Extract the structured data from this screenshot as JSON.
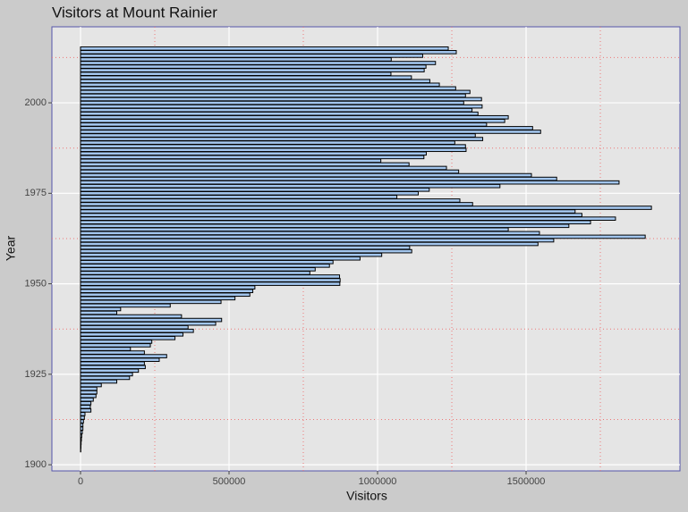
{
  "chart_data": {
    "type": "bar",
    "orientation": "horizontal",
    "title": "Visitors at Mount Rainier",
    "xlabel": "Visitors",
    "ylabel": "Year",
    "categories": [
      2015,
      2014,
      2013,
      2012,
      2011,
      2010,
      2009,
      2008,
      2007,
      2006,
      2005,
      2004,
      2003,
      2002,
      2001,
      2000,
      1999,
      1998,
      1997,
      1996,
      1995,
      1994,
      1993,
      1992,
      1991,
      1990,
      1989,
      1988,
      1987,
      1986,
      1985,
      1984,
      1983,
      1982,
      1981,
      1980,
      1979,
      1978,
      1977,
      1976,
      1975,
      1974,
      1973,
      1972,
      1971,
      1970,
      1969,
      1968,
      1967,
      1966,
      1965,
      1964,
      1963,
      1962,
      1961,
      1960,
      1959,
      1958,
      1957,
      1956,
      1955,
      1954,
      1953,
      1952,
      1951,
      1950,
      1949,
      1948,
      1947,
      1946,
      1945,
      1944,
      1943,
      1942,
      1941,
      1940,
      1939,
      1938,
      1937,
      1936,
      1935,
      1934,
      1933,
      1932,
      1931,
      1930,
      1929,
      1928,
      1927,
      1926,
      1925,
      1924,
      1923,
      1922,
      1921,
      1920,
      1919,
      1918,
      1917,
      1916,
      1915,
      1914,
      1913,
      1912,
      1911,
      1910,
      1909,
      1908,
      1907,
      1906,
      1905,
      1904
    ],
    "values": [
      1238000,
      1265000,
      1152000,
      1046000,
      1195000,
      1163000,
      1157000,
      1045000,
      1114000,
      1176000,
      1208000,
      1263000,
      1311000,
      1296000,
      1350000,
      1290000,
      1352000,
      1318000,
      1338000,
      1440000,
      1428000,
      1367000,
      1522000,
      1549000,
      1329000,
      1354000,
      1260000,
      1296000,
      1298000,
      1164000,
      1156000,
      1011000,
      1106000,
      1232000,
      1273000,
      1518000,
      1603000,
      1813000,
      1412000,
      1174000,
      1137000,
      1065000,
      1277000,
      1320000,
      1922000,
      1665000,
      1688000,
      1801000,
      1717000,
      1644000,
      1440000,
      1545000,
      1901000,
      1593000,
      1540000,
      1108000,
      1115000,
      1014000,
      941000,
      850000,
      838000,
      790000,
      772000,
      872000,
      874000,
      873000,
      587000,
      580000,
      570000,
      520000,
      473000,
      302000,
      135000,
      122000,
      340000,
      475000,
      455000,
      362000,
      380000,
      345000,
      318000,
      240000,
      235000,
      168000,
      215000,
      290000,
      265000,
      215000,
      218000,
      195000,
      175000,
      165000,
      122000,
      70000,
      55000,
      55000,
      52000,
      43000,
      35000,
      33000,
      35000,
      15000,
      13000,
      10000,
      8000,
      8000,
      6000,
      4000,
      3000,
      2000,
      1500,
      1000
    ],
    "color": "#a3c6ee",
    "xlim": [
      -96400,
      2018000
    ],
    "xticks": [
      0,
      500000,
      1000000,
      1500000
    ],
    "xminorticks": [
      250000,
      750000,
      1250000,
      1750000
    ],
    "ylim": [
      1898.3,
      2021
    ],
    "yticks": [
      1900,
      1925,
      1950,
      1975,
      2000
    ],
    "yminorticks": [
      1912.5,
      1937.5,
      1962.5,
      1987.5,
      2012.5
    ],
    "grid": true
  }
}
